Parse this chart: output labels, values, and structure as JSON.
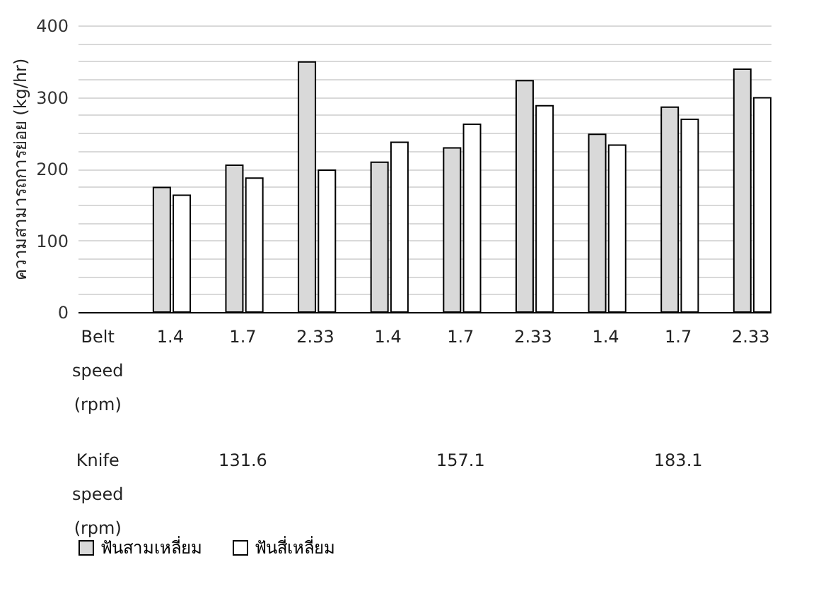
{
  "chart_data": {
    "type": "bar",
    "ylabel": "ความสามารถการย่อย (kg/hr)",
    "categories": [
      "Belt speed (rpm)",
      "1.4",
      "1.7",
      "2.33",
      "1.4",
      "1.7",
      "2.33",
      "1.4",
      "1.7",
      "2.33"
    ],
    "series": [
      {
        "name": "ฟันสามเหลี่ยม",
        "color": "#d9d9d9",
        "values": [
          null,
          174,
          205,
          349,
          209,
          229,
          323,
          248,
          286,
          339
        ]
      },
      {
        "name": "ฟันสี่เหลี่ยม",
        "color": "#ffffff",
        "values": [
          null,
          163,
          187,
          198,
          237,
          262,
          288,
          233,
          269,
          299
        ]
      }
    ],
    "annotations": [
      "Knife speed (rpm)",
      "131.6",
      "157.1",
      "183.1"
    ],
    "ylim": [
      0,
      400
    ],
    "yticks": [
      0,
      {
        "value": 25,
        "label": null
      },
      {
        "value": 50,
        "label": null
      },
      {
        "value": 75,
        "label": null
      },
      100,
      {
        "value": 125,
        "label": null
      },
      {
        "value": 150,
        "label": null
      },
      {
        "value": 175,
        "label": null
      },
      200,
      {
        "value": 225,
        "label": null
      },
      {
        "value": 250,
        "label": null
      },
      {
        "value": 275,
        "label": null
      },
      300,
      {
        "value": 325,
        "label": null
      },
      {
        "value": 350,
        "label": null
      },
      {
        "value": 375,
        "label": null
      },
      400
    ],
    "grid": "y",
    "legend": "bottom"
  }
}
